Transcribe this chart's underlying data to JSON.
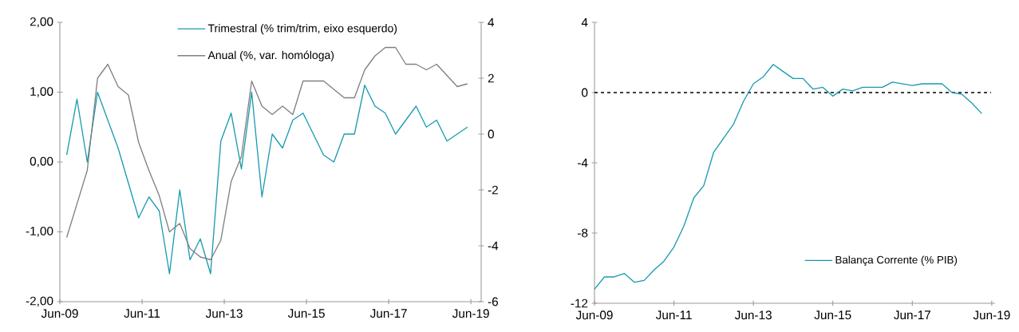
{
  "chart_data": [
    {
      "type": "line",
      "x": [
        "2009-08",
        "2009-11",
        "2010-02",
        "2010-05",
        "2010-08",
        "2010-11",
        "2011-02",
        "2011-05",
        "2011-08",
        "2011-11",
        "2012-02",
        "2012-05",
        "2012-08",
        "2012-11",
        "2013-02",
        "2013-05",
        "2013-08",
        "2013-11",
        "2014-02",
        "2014-05",
        "2014-08",
        "2014-11",
        "2015-02",
        "2015-05",
        "2015-08",
        "2015-11",
        "2016-02",
        "2016-05",
        "2016-08",
        "2016-11",
        "2017-02",
        "2017-05",
        "2017-08",
        "2017-11",
        "2018-02",
        "2018-05",
        "2018-08",
        "2018-11",
        "2019-02",
        "2019-05"
      ],
      "series": [
        {
          "name": "Trimestral (% trim/trim, eixo esquerdo)",
          "color": "#1a9bb0",
          "values": [
            0.1,
            0.9,
            0.0,
            1.0,
            0.6,
            0.2,
            -0.3,
            -0.8,
            -0.5,
            -0.7,
            -1.6,
            -0.4,
            -1.4,
            -1.1,
            -1.6,
            0.3,
            0.7,
            -0.1,
            1.0,
            -0.5,
            0.4,
            0.2,
            0.6,
            0.7,
            0.4,
            0.1,
            0.0,
            0.4,
            0.4,
            1.1,
            0.8,
            0.7,
            0.4,
            0.6,
            0.8,
            0.5,
            0.6,
            0.3,
            0.4,
            0.5
          ]
        },
        {
          "name": "Anual (%, var. homóloga)",
          "color": "#808080",
          "axis": "y2",
          "values": [
            -3.7,
            -2.5,
            -1.3,
            2.0,
            2.5,
            1.7,
            1.4,
            -0.3,
            -1.3,
            -2.2,
            -3.5,
            -3.2,
            -4.1,
            -4.4,
            -4.5,
            -3.8,
            -1.7,
            -0.8,
            1.9,
            1.0,
            0.7,
            1.0,
            0.7,
            1.9,
            1.9,
            1.9,
            1.6,
            1.3,
            1.3,
            2.3,
            2.8,
            3.1,
            3.1,
            2.5,
            2.5,
            2.3,
            2.5,
            2.1,
            1.7,
            1.8
          ]
        }
      ],
      "xlim": [
        "2009-06",
        "2019-09"
      ],
      "xticks": [
        {
          "value": "2009-06",
          "label": "Jun-09"
        },
        {
          "value": "2011-06",
          "label": "Jun-11"
        },
        {
          "value": "2013-06",
          "label": "Jun-13"
        },
        {
          "value": "2015-06",
          "label": "Jun-15"
        },
        {
          "value": "2017-06",
          "label": "Jun-17"
        },
        {
          "value": "2019-06",
          "label": "Jun-19"
        }
      ],
      "ylim": [
        -2,
        2
      ],
      "yticks": [
        {
          "value": 2,
          "label": "2,00"
        },
        {
          "value": 1,
          "label": "1,00"
        },
        {
          "value": 0,
          "label": "0,00"
        },
        {
          "value": -1,
          "label": "-1,00"
        },
        {
          "value": -2,
          "label": "-2,00"
        }
      ],
      "y2lim": [
        -6,
        4
      ],
      "y2ticks": [
        4,
        2,
        0,
        -2,
        -4,
        -6
      ],
      "legend": "top right"
    },
    {
      "type": "line",
      "x": [
        "2009-06",
        "2009-09",
        "2009-12",
        "2010-03",
        "2010-06",
        "2010-09",
        "2010-12",
        "2011-03",
        "2011-06",
        "2011-09",
        "2011-12",
        "2012-03",
        "2012-06",
        "2012-09",
        "2012-12",
        "2013-03",
        "2013-06",
        "2013-09",
        "2013-12",
        "2014-03",
        "2014-06",
        "2014-09",
        "2014-12",
        "2015-03",
        "2015-06",
        "2015-09",
        "2015-12",
        "2016-03",
        "2016-06",
        "2016-09",
        "2016-12",
        "2017-03",
        "2017-06",
        "2017-09",
        "2017-12",
        "2018-03",
        "2018-06",
        "2018-09",
        "2018-12",
        "2019-03"
      ],
      "series": [
        {
          "name": "Balança Corrente (% PIB)",
          "color": "#1a9bb0",
          "values": [
            -11.2,
            -10.5,
            -10.5,
            -10.3,
            -10.8,
            -10.7,
            -10.1,
            -9.6,
            -8.8,
            -7.6,
            -6.0,
            -5.3,
            -3.4,
            -2.6,
            -1.8,
            -0.5,
            0.5,
            0.9,
            1.6,
            1.2,
            0.8,
            0.8,
            0.2,
            0.3,
            -0.2,
            0.2,
            0.1,
            0.3,
            0.3,
            0.3,
            0.6,
            0.5,
            0.4,
            0.5,
            0.5,
            0.5,
            0.0,
            -0.1,
            -0.6,
            -1.2
          ]
        }
      ],
      "xlim": [
        "2009-06",
        "2019-07"
      ],
      "xticks": [
        {
          "value": "2009-06",
          "label": "Jun-09"
        },
        {
          "value": "2011-06",
          "label": "Jun-11"
        },
        {
          "value": "2013-06",
          "label": "Jun-13"
        },
        {
          "value": "2015-06",
          "label": "Jun-15"
        },
        {
          "value": "2017-06",
          "label": "Jun-17"
        },
        {
          "value": "2019-06",
          "label": "Jun-19"
        }
      ],
      "ylim": [
        -12,
        4
      ],
      "yticks": [
        4,
        0,
        -4,
        -8,
        -12
      ],
      "ref_lines": [
        {
          "axis": "y",
          "value": 0,
          "color": "#000000",
          "line_style": "dashed"
        }
      ],
      "legend": "bottom right"
    }
  ]
}
